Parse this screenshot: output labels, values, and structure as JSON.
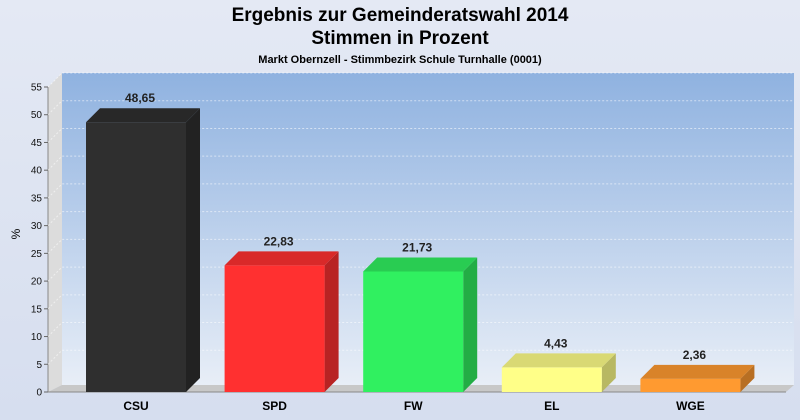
{
  "chart_data": {
    "type": "bar",
    "title_line1": "Ergebnis zur Gemeinderatswahl 2014",
    "title_line2": "Stimmen in Prozent",
    "subtitle": "Markt Obernzell - Stimmbezirk Schule Turnhalle (0001)",
    "ylabel": "%",
    "ylim": [
      0,
      55
    ],
    "yticks": [
      0,
      5,
      10,
      15,
      20,
      25,
      30,
      35,
      40,
      45,
      50,
      55
    ],
    "categories": [
      "CSU",
      "SPD",
      "FW",
      "EL",
      "WGE"
    ],
    "values": [
      48.65,
      22.83,
      21.73,
      4.43,
      2.36
    ],
    "value_labels": [
      "48,65",
      "22,83",
      "21,73",
      "4,43",
      "2,36"
    ],
    "colors": [
      "#2f2f2f",
      "#ff3030",
      "#30f060",
      "#ffff88",
      "#ff9a30"
    ],
    "grid": true,
    "legend": "none"
  }
}
